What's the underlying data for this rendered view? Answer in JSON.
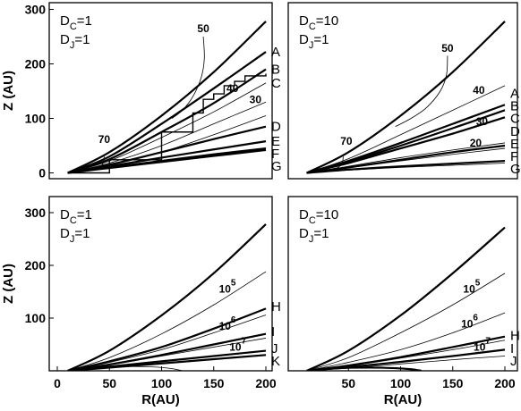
{
  "chart_data": [
    {
      "type": "line",
      "panel": "top-left",
      "params": {
        "dc_base": "D",
        "dc_sub": "C",
        "dc_val": "=1",
        "dj_base": "D",
        "dj_sub": "J",
        "dj_val": "=1"
      },
      "ylabel": "Z (AU)",
      "xlabel": "",
      "xlim": [
        0,
        220
      ],
      "ylim": [
        -10,
        300
      ],
      "xticks": [],
      "yticks": [
        0,
        100,
        200,
        300
      ],
      "series": [
        {
          "name": "",
          "style": "thick",
          "x": [
            10,
            50,
            100,
            150,
            200
          ],
          "y": [
            0,
            38,
            105,
            185,
            278
          ]
        },
        {
          "name": "A",
          "style": "thick",
          "x": [
            10,
            50,
            100,
            150,
            200
          ],
          "y": [
            0,
            30,
            90,
            155,
            222
          ]
        },
        {
          "name": "B",
          "style": "thick",
          "x": [
            10,
            50,
            100,
            150,
            200
          ],
          "y": [
            0,
            25,
            75,
            128,
            190
          ]
        },
        {
          "name": "C",
          "style": "thin",
          "x": [
            10,
            50,
            100,
            150,
            200
          ],
          "y": [
            0,
            22,
            65,
            112,
            165
          ]
        },
        {
          "name": "D",
          "style": "thick",
          "x": [
            10,
            50,
            100,
            150,
            200
          ],
          "y": [
            0,
            15,
            38,
            62,
            85
          ]
        },
        {
          "name": "E",
          "style": "thick",
          "x": [
            10,
            50,
            100,
            150,
            200
          ],
          "y": [
            0,
            12,
            28,
            43,
            58
          ]
        },
        {
          "name": "F",
          "style": "thick",
          "x": [
            10,
            50,
            100,
            150,
            200
          ],
          "y": [
            0,
            10,
            22,
            34,
            45
          ]
        },
        {
          "name": "G",
          "style": "thick",
          "x": [
            10,
            50,
            100,
            150,
            200
          ],
          "y": [
            0,
            9,
            20,
            31,
            42
          ]
        },
        {
          "name": "",
          "style": "thin",
          "x": [
            10,
            50,
            100,
            150,
            200
          ],
          "y": [
            0,
            18,
            50,
            90,
            130
          ]
        },
        {
          "name": "",
          "style": "thin",
          "x": [
            10,
            50,
            100,
            150,
            200
          ],
          "y": [
            0,
            14,
            38,
            70,
            105
          ]
        },
        {
          "name": "",
          "style": "stepped",
          "x": [
            10,
            50,
            100,
            130,
            140,
            150,
            160,
            170,
            180,
            200
          ],
          "y": [
            0,
            24,
            75,
            110,
            135,
            145,
            160,
            168,
            178,
            182
          ]
        },
        {
          "name": "",
          "style": "thin",
          "x": [
            140,
            141,
            138,
            130,
            120,
            110
          ],
          "y": [
            250,
            210,
            175,
            140,
            115,
            100
          ]
        },
        {
          "name": "",
          "style": "thin",
          "x": [
            45,
            44,
            40,
            35
          ],
          "y": [
            30,
            18,
            10,
            8
          ]
        }
      ],
      "annotations": [
        {
          "text": "50",
          "x": 140,
          "y": 258
        },
        {
          "text": "40",
          "x": 168,
          "y": 148
        },
        {
          "text": "30",
          "x": 190,
          "y": 128
        },
        {
          "text": "70",
          "x": 45,
          "y": 55
        }
      ]
    },
    {
      "type": "line",
      "panel": "top-right",
      "params": {
        "dc_base": "D",
        "dc_sub": "C",
        "dc_val": "=10",
        "dj_base": "D",
        "dj_sub": "J",
        "dj_val": "=1"
      },
      "ylabel": "",
      "xlabel": "",
      "xlim": [
        0,
        220
      ],
      "ylim": [
        -10,
        300
      ],
      "xticks": [],
      "yticks": [],
      "series": [
        {
          "name": "",
          "style": "thick",
          "x": [
            10,
            50,
            100,
            150,
            200
          ],
          "y": [
            0,
            38,
            105,
            185,
            278
          ]
        },
        {
          "name": "A",
          "style": "thick",
          "x": [
            10,
            50,
            100,
            150,
            200
          ],
          "y": [
            0,
            22,
            55,
            90,
            125
          ]
        },
        {
          "name": "B",
          "style": "thick",
          "x": [
            10,
            50,
            100,
            150,
            200
          ],
          "y": [
            0,
            20,
            50,
            82,
            115
          ]
        },
        {
          "name": "C",
          "style": "thick",
          "x": [
            10,
            50,
            100,
            150,
            200
          ],
          "y": [
            0,
            18,
            45,
            72,
            102
          ]
        },
        {
          "name": "D",
          "style": "thin",
          "x": [
            10,
            50,
            100,
            150,
            200
          ],
          "y": [
            0,
            12,
            28,
            42,
            55
          ]
        },
        {
          "name": "E",
          "style": "thick",
          "x": [
            10,
            50,
            100,
            150,
            200
          ],
          "y": [
            0,
            10,
            24,
            38,
            50
          ]
        },
        {
          "name": "F",
          "style": "thick",
          "x": [
            10,
            50,
            100,
            150,
            200
          ],
          "y": [
            0,
            6,
            12,
            17,
            22
          ]
        },
        {
          "name": "G",
          "style": "thin",
          "x": [
            10,
            50,
            100,
            150,
            200
          ],
          "y": [
            0,
            5,
            10,
            14,
            18
          ]
        },
        {
          "name": "",
          "style": "thin",
          "x": [
            10,
            50,
            100,
            150,
            200
          ],
          "y": [
            0,
            26,
            70,
            115,
            160
          ]
        },
        {
          "name": "",
          "style": "thin",
          "x": [
            10,
            50,
            100,
            150,
            200
          ],
          "y": [
            0,
            9,
            22,
            34,
            45
          ]
        },
        {
          "name": "",
          "style": "thin",
          "x": [
            145,
            144,
            138,
            125,
            110,
            95
          ],
          "y": [
            215,
            180,
            150,
            120,
            100,
            85
          ]
        },
        {
          "name": "",
          "style": "thin",
          "x": [
            45,
            44,
            40,
            35
          ],
          "y": [
            30,
            18,
            10,
            8
          ]
        }
      ],
      "annotations": [
        {
          "text": "50",
          "x": 145,
          "y": 222
        },
        {
          "text": "40",
          "x": 175,
          "y": 145
        },
        {
          "text": "30",
          "x": 178,
          "y": 88
        },
        {
          "text": "20",
          "x": 172,
          "y": 48
        },
        {
          "text": "70",
          "x": 48,
          "y": 52
        }
      ]
    },
    {
      "type": "line",
      "panel": "bottom-left",
      "params": {
        "dc_base": "D",
        "dc_sub": "C",
        "dc_val": "=1",
        "dj_base": "D",
        "dj_sub": "J",
        "dj_val": "=1"
      },
      "ylabel": "Z (AU)",
      "xlabel": "R(AU)",
      "xlim": [
        0,
        220
      ],
      "ylim": [
        0,
        300
      ],
      "xticks": [
        0,
        50,
        100,
        150,
        200
      ],
      "yticks": [
        100,
        200,
        300
      ],
      "series": [
        {
          "name": "",
          "style": "thick",
          "x": [
            10,
            50,
            100,
            150,
            200
          ],
          "y": [
            0,
            38,
            105,
            185,
            278
          ]
        },
        {
          "name": "",
          "style": "thin",
          "x": [
            10,
            50,
            100,
            150,
            200
          ],
          "y": [
            0,
            25,
            70,
            125,
            188
          ]
        },
        {
          "name": "H",
          "style": "thick",
          "x": [
            10,
            50,
            100,
            150,
            200
          ],
          "y": [
            0,
            18,
            45,
            80,
            118
          ]
        },
        {
          "name": "",
          "style": "thin",
          "x": [
            10,
            50,
            100,
            150,
            200
          ],
          "y": [
            0,
            16,
            40,
            72,
            106
          ]
        },
        {
          "name": "I",
          "style": "thick",
          "x": [
            10,
            50,
            100,
            150,
            200
          ],
          "y": [
            0,
            12,
            30,
            50,
            70
          ]
        },
        {
          "name": "",
          "style": "thin",
          "x": [
            10,
            50,
            100,
            150,
            200
          ],
          "y": [
            0,
            11,
            28,
            45,
            62
          ]
        },
        {
          "name": "J",
          "style": "thick",
          "x": [
            10,
            50,
            100,
            150,
            200
          ],
          "y": [
            0,
            8,
            18,
            28,
            38
          ]
        },
        {
          "name": "K",
          "style": "thick",
          "x": [
            10,
            50,
            100,
            150,
            200
          ],
          "y": [
            0,
            6,
            14,
            22,
            30
          ]
        },
        {
          "name": "",
          "style": "thin",
          "x": [
            10,
            40,
            70,
            95,
            110,
            120
          ],
          "y": [
            0,
            6,
            8,
            7,
            4,
            0
          ]
        }
      ],
      "annotations": [
        {
          "text": "10",
          "sup": "5",
          "x": 155,
          "y": 148
        },
        {
          "text": "10",
          "sup": "6",
          "x": 155,
          "y": 78
        },
        {
          "text": "10",
          "sup": "7",
          "x": 165,
          "y": 38
        }
      ]
    },
    {
      "type": "line",
      "panel": "bottom-right",
      "params": {
        "dc_base": "D",
        "dc_sub": "C",
        "dc_val": "=10",
        "dj_base": "D",
        "dj_sub": "J",
        "dj_val": "=1"
      },
      "ylabel": "",
      "xlabel": "R(AU)",
      "xlim": [
        0,
        220
      ],
      "ylim": [
        0,
        300
      ],
      "xticks": [
        50,
        100,
        150,
        200
      ],
      "yticks": [],
      "series": [
        {
          "name": "",
          "style": "thick",
          "x": [
            10,
            50,
            100,
            150,
            200
          ],
          "y": [
            0,
            38,
            105,
            185,
            272
          ]
        },
        {
          "name": "",
          "style": "thin",
          "x": [
            10,
            50,
            100,
            150,
            200
          ],
          "y": [
            0,
            25,
            72,
            125,
            185
          ]
        },
        {
          "name": "",
          "style": "thin",
          "x": [
            10,
            50,
            100,
            150,
            200
          ],
          "y": [
            0,
            16,
            40,
            72,
            110
          ]
        },
        {
          "name": "H",
          "style": "thick",
          "x": [
            10,
            50,
            100,
            150,
            200
          ],
          "y": [
            0,
            10,
            26,
            45,
            65
          ]
        },
        {
          "name": "",
          "style": "thin",
          "x": [
            10,
            50,
            100,
            150,
            200
          ],
          "y": [
            0,
            9,
            24,
            40,
            58
          ]
        },
        {
          "name": "I",
          "style": "thick",
          "x": [
            10,
            50,
            100,
            150,
            200
          ],
          "y": [
            0,
            7,
            17,
            28,
            40
          ]
        },
        {
          "name": "J",
          "style": "thin",
          "x": [
            10,
            50,
            100,
            150,
            200
          ],
          "y": [
            0,
            5,
            13,
            21,
            28
          ]
        },
        {
          "name": "",
          "style": "thick",
          "x": [
            10,
            40,
            70,
            95,
            110,
            120
          ],
          "y": [
            0,
            5,
            6,
            5,
            3,
            0
          ]
        }
      ],
      "annotations": [
        {
          "text": "10",
          "sup": "5",
          "x": 160,
          "y": 148
        },
        {
          "text": "10",
          "sup": "6",
          "x": 158,
          "y": 82
        },
        {
          "text": "10",
          "sup": "7",
          "x": 170,
          "y": 38
        }
      ]
    }
  ]
}
